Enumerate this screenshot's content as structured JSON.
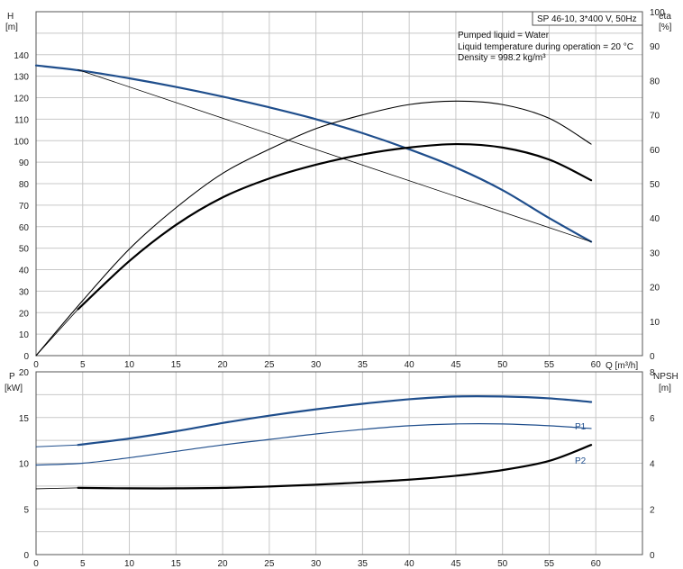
{
  "chart_data": [
    {
      "type": "line",
      "xlabel": "Q [m³/h]",
      "x_ticks": [
        0,
        5,
        10,
        15,
        20,
        25,
        30,
        35,
        40,
        45,
        50,
        55,
        60
      ],
      "x_grid_step": 5,
      "xlim": [
        0,
        65
      ],
      "left_axis": {
        "label": "H",
        "unit": "[m]",
        "ylim": [
          0,
          160
        ],
        "ticks": [
          0,
          10,
          20,
          30,
          40,
          50,
          60,
          70,
          80,
          90,
          100,
          110,
          120,
          130,
          140
        ]
      },
      "right_axis": {
        "label": "eta",
        "unit": "[%]",
        "ylim": [
          0,
          100
        ],
        "ticks": [
          0,
          10,
          20,
          30,
          40,
          50,
          60,
          70,
          80,
          90,
          100
        ]
      },
      "grid": true,
      "title_box": "SP 46-10, 3*400 V, 50Hz",
      "annotations": [
        "Pumped liquid = Water",
        "Liquid temperature during operation = 20 °C",
        "Density = 998.2 kg/m³"
      ],
      "series": [
        {
          "axis": "left",
          "color": "#1f4e8c",
          "width": 2.2,
          "x": [
            0,
            5,
            10,
            15,
            20,
            25,
            30,
            35,
            40,
            45,
            50,
            55,
            59.5
          ],
          "y": [
            135,
            132.5,
            129,
            125,
            120.5,
            115.5,
            110,
            103.5,
            96,
            87.5,
            77,
            64,
            53
          ]
        },
        {
          "axis": "left",
          "color": "#000000",
          "width": 0.8,
          "x": [
            4.5,
            59.5
          ],
          "y": [
            133,
            53
          ]
        },
        {
          "axis": "right",
          "color": "#000000",
          "width": 1.1,
          "x": [
            0,
            5,
            10,
            15,
            20,
            25,
            30,
            35,
            40,
            45,
            50,
            55,
            59.5
          ],
          "y": [
            0,
            16,
            31,
            43,
            53,
            60,
            66,
            70,
            73,
            74,
            73,
            69,
            61.5
          ]
        },
        {
          "axis": "right",
          "color": "#000000",
          "width": 2.2,
          "x": [
            4.5,
            10,
            15,
            20,
            25,
            30,
            35,
            40,
            45,
            50,
            55,
            59.5
          ],
          "y": [
            13.5,
            27.5,
            38,
            46,
            51.5,
            55.5,
            58.5,
            60.5,
            61.5,
            60.5,
            57,
            51
          ]
        },
        {
          "axis": "right",
          "color": "#000000",
          "width": 0.8,
          "x": [
            0,
            4.5
          ],
          "y": [
            0,
            13.5
          ]
        }
      ]
    },
    {
      "type": "line",
      "x_ticks": [
        0,
        5,
        10,
        15,
        20,
        25,
        30,
        35,
        40,
        45,
        50,
        55,
        60
      ],
      "x_grid_step": 5,
      "xlim": [
        0,
        65
      ],
      "left_axis": {
        "label": "P",
        "unit": "[kW]",
        "ylim": [
          0,
          20
        ],
        "ticks": [
          0,
          5,
          10,
          15,
          20
        ],
        "grid_step": 2.5
      },
      "right_axis": {
        "label": "NPSH",
        "unit": "[m]",
        "ylim": [
          0,
          8
        ],
        "ticks": [
          0,
          2,
          4,
          6,
          8
        ]
      },
      "grid": true,
      "series": [
        {
          "name": "P1",
          "axis": "left",
          "color": "#1f4e8c",
          "width": 2.2,
          "x": [
            4.5,
            10,
            15,
            20,
            25,
            30,
            35,
            40,
            45,
            50,
            55,
            59.5
          ],
          "y": [
            12,
            12.7,
            13.5,
            14.4,
            15.2,
            15.9,
            16.5,
            17,
            17.3,
            17.3,
            17.1,
            16.7
          ]
        },
        {
          "axis": "left",
          "color": "#1f4e8c",
          "width": 1,
          "x": [
            0,
            4.5
          ],
          "y": [
            11.8,
            12
          ]
        },
        {
          "name": "P2",
          "axis": "left",
          "color": "#1f4e8c",
          "width": 1.2,
          "x": [
            0,
            5,
            10,
            15,
            20,
            25,
            30,
            35,
            40,
            45,
            50,
            55,
            59.5
          ],
          "y": [
            9.8,
            10,
            10.6,
            11.3,
            12,
            12.6,
            13.2,
            13.7,
            14.1,
            14.3,
            14.3,
            14.1,
            13.8
          ]
        },
        {
          "axis": "right",
          "color": "#000000",
          "width": 2.2,
          "x": [
            4.5,
            10,
            15,
            20,
            25,
            30,
            35,
            40,
            45,
            50,
            55,
            59.5
          ],
          "y": [
            2.92,
            2.9,
            2.9,
            2.92,
            2.98,
            3.06,
            3.16,
            3.28,
            3.45,
            3.7,
            4.1,
            4.8
          ]
        },
        {
          "axis": "right",
          "color": "#000000",
          "width": 0.8,
          "x": [
            0,
            4.5
          ],
          "y": [
            2.88,
            2.92
          ]
        }
      ]
    }
  ],
  "top": {
    "h_label": "H",
    "h_unit": "[m]",
    "eta_label": "eta",
    "eta_unit": "[%]"
  },
  "bottom": {
    "p_label": "P",
    "p_unit": "[kW]",
    "npsh_label": "NPSH",
    "npsh_unit": "[m]",
    "p1_label": "P1",
    "p2_label": "P2"
  }
}
